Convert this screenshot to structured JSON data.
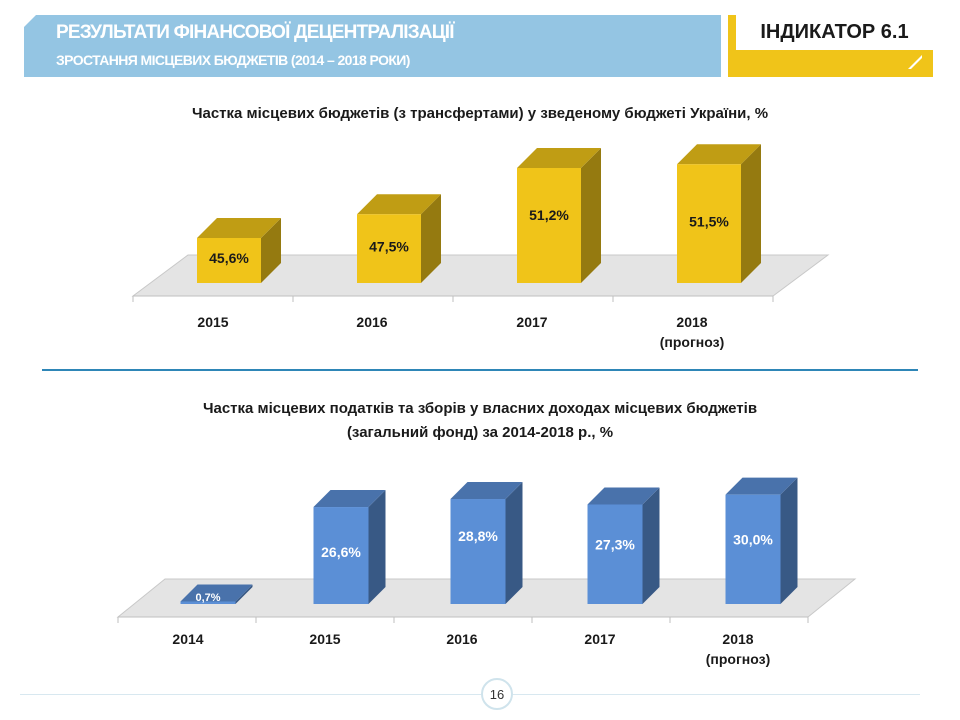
{
  "header": {
    "title": "РЕЗУЛЬТАТИ ФІНАНСОВОЇ ДЕЦЕНТРАЛІЗАЦІЇ",
    "subtitle": "ЗРОСТАННЯ МІСЦЕВИХ БЮДЖЕТІВ (2014 – 2018 РОКИ)",
    "indicator": "ІНДИКАТОР 6.1"
  },
  "page_number": "16",
  "colors": {
    "header_blue": "#94c5e3",
    "indicator_yellow": "#f0c419",
    "bar_yellow": "#f0c419",
    "bar_blue": "#5b8fd6",
    "divider": "#2e86b7"
  },
  "chart_data": [
    {
      "type": "bar",
      "title": "Частка місцевих бюджетів (з трансфертами) у зведеному бюджеті України, %",
      "categories": [
        "2015",
        "2016",
        "2017",
        "2018"
      ],
      "category_notes": [
        "",
        "",
        "",
        "(прогноз)"
      ],
      "values": [
        45.6,
        47.5,
        51.2,
        51.5
      ],
      "value_labels": [
        "45,6%",
        "47,5%",
        "51,2%",
        "51,5%"
      ],
      "ylim": [
        42,
        52
      ],
      "xlabel": "",
      "ylabel": "",
      "style": "3d"
    },
    {
      "type": "bar",
      "title_lines": [
        "Частка місцевих податків та зборів у власних доходах місцевих бюджетів",
        "(загальний фонд) за 2014-2018 р., %"
      ],
      "categories": [
        "2014",
        "2015",
        "2016",
        "2017",
        "2018"
      ],
      "category_notes": [
        "",
        "",
        "",
        "",
        "(прогноз)"
      ],
      "values": [
        0.7,
        26.6,
        28.8,
        27.3,
        30.0
      ],
      "value_labels": [
        "0,7%",
        "26,6%",
        "28,8%",
        "27,3%",
        "30,0%"
      ],
      "ylim": [
        0,
        31
      ],
      "xlabel": "",
      "ylabel": "",
      "style": "3d"
    }
  ]
}
